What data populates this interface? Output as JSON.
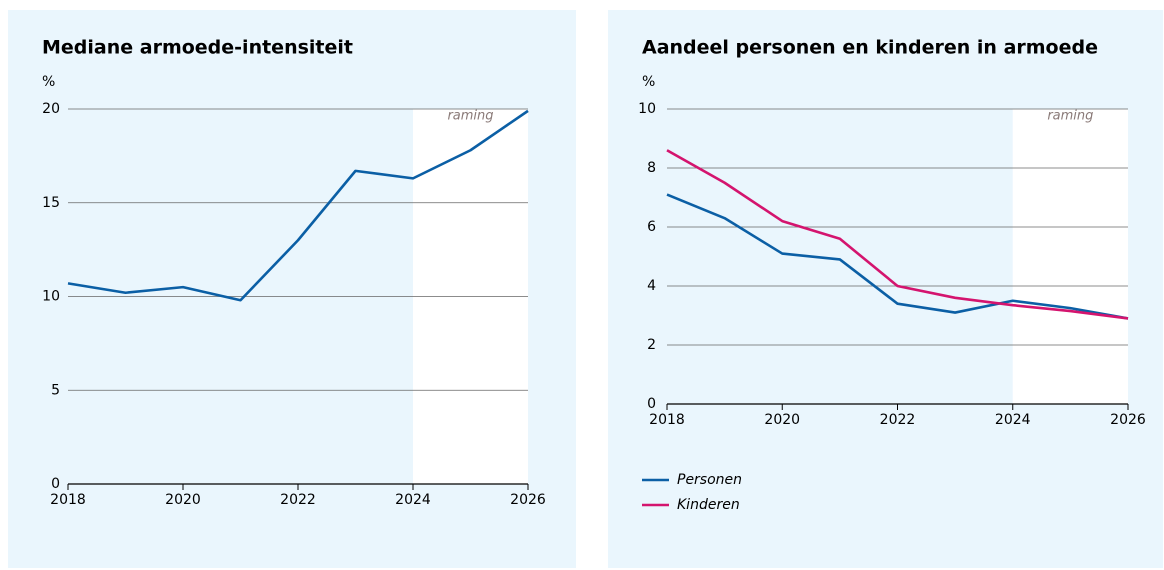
{
  "charts": [
    {
      "chart_data": {
        "type": "line",
        "title": "Mediane armoede-intensiteit",
        "y_label": "%",
        "annotation": "raming",
        "forecast_from": 2024,
        "x": [
          2018,
          2019,
          2020,
          2021,
          2022,
          2023,
          2024,
          2025,
          2026
        ],
        "xlim": [
          2018,
          2026
        ],
        "xticks": [
          2018,
          2020,
          2022,
          2024,
          2026
        ],
        "ylim": [
          0,
          20
        ],
        "yticks": [
          0,
          5,
          10,
          15,
          20
        ],
        "grid": true,
        "series": [
          {
            "name": null,
            "color": "#0b5fa5",
            "values": [
              10.7,
              10.2,
              10.5,
              9.8,
              13.0,
              16.7,
              16.3,
              17.8,
              19.9
            ]
          }
        ]
      }
    },
    {
      "chart_data": {
        "type": "line",
        "title": "Aandeel personen en kinderen in armoede",
        "y_label": "%",
        "annotation": "raming",
        "forecast_from": 2024,
        "x": [
          2018,
          2019,
          2020,
          2021,
          2022,
          2023,
          2024,
          2025,
          2026
        ],
        "xlim": [
          2018,
          2026
        ],
        "xticks": [
          2018,
          2020,
          2022,
          2024,
          2026
        ],
        "ylim": [
          0,
          10
        ],
        "yticks": [
          0,
          2,
          4,
          6,
          8,
          10
        ],
        "grid": true,
        "legend": "bottom-left",
        "series": [
          {
            "name": "Personen",
            "color": "#0b5fa5",
            "values": [
              7.1,
              6.3,
              5.1,
              4.9,
              3.4,
              3.1,
              3.5,
              3.25,
              2.9
            ]
          },
          {
            "name": "Kinderen",
            "color": "#d4146e",
            "values": [
              8.6,
              7.5,
              6.2,
              5.6,
              4.0,
              3.6,
              3.35,
              3.15,
              2.9
            ]
          }
        ]
      }
    }
  ]
}
